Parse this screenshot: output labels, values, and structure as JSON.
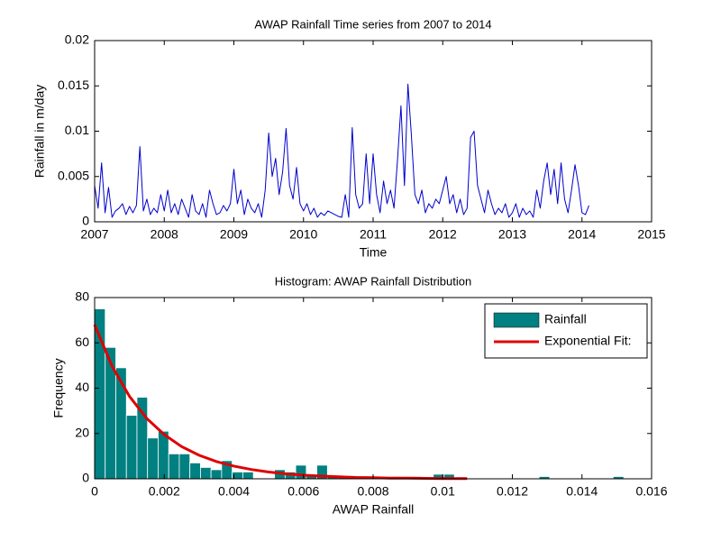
{
  "chart_data": [
    {
      "type": "line",
      "title": "AWAP Rainfall Time series from 2007 to 2014",
      "xlabel": "Time",
      "ylabel": "Rainfall in m/day",
      "x": [
        2007,
        2007.05,
        2007.1,
        2007.15,
        2007.2,
        2007.25,
        2007.3,
        2007.35,
        2007.4,
        2007.45,
        2007.5,
        2007.55,
        2007.6,
        2007.65,
        2007.7,
        2007.75,
        2007.8,
        2007.85,
        2007.9,
        2007.95,
        2008,
        2008.05,
        2008.1,
        2008.15,
        2008.2,
        2008.25,
        2008.3,
        2008.35,
        2008.4,
        2008.45,
        2008.5,
        2008.55,
        2008.6,
        2008.65,
        2008.7,
        2008.75,
        2008.8,
        2008.85,
        2008.9,
        2008.95,
        2009,
        2009.05,
        2009.1,
        2009.15,
        2009.2,
        2009.25,
        2009.3,
        2009.35,
        2009.4,
        2009.45,
        2009.5,
        2009.55,
        2009.6,
        2009.65,
        2009.7,
        2009.75,
        2009.8,
        2009.85,
        2009.9,
        2009.95,
        2010,
        2010.05,
        2010.1,
        2010.15,
        2010.2,
        2010.25,
        2010.3,
        2010.35,
        2010.4,
        2010.45,
        2010.5,
        2010.55,
        2010.6,
        2010.65,
        2010.7,
        2010.75,
        2010.8,
        2010.85,
        2010.9,
        2010.95,
        2011,
        2011.05,
        2011.1,
        2011.15,
        2011.2,
        2011.25,
        2011.3,
        2011.35,
        2011.4,
        2011.45,
        2011.5,
        2011.55,
        2011.6,
        2011.65,
        2011.7,
        2011.75,
        2011.8,
        2011.85,
        2011.9,
        2011.95,
        2012,
        2012.05,
        2012.1,
        2012.15,
        2012.2,
        2012.25,
        2012.3,
        2012.35,
        2012.4,
        2012.45,
        2012.5,
        2012.55,
        2012.6,
        2012.65,
        2012.7,
        2012.75,
        2012.8,
        2012.85,
        2012.9,
        2012.95,
        2013,
        2013.05,
        2013.1,
        2013.15,
        2013.2,
        2013.25,
        2013.3,
        2013.35,
        2013.4,
        2013.45,
        2013.5,
        2013.55,
        2013.6,
        2013.65,
        2013.7,
        2013.75,
        2013.8,
        2013.85,
        2013.9,
        2013.95,
        2014,
        2014.05,
        2014.1
      ],
      "series": [
        {
          "color": "#0000cc",
          "values": [
            0.004,
            0.0015,
            0.0065,
            0.001,
            0.0038,
            0.0005,
            0.0012,
            0.0015,
            0.002,
            0.0008,
            0.0017,
            0.001,
            0.0018,
            0.0083,
            0.0012,
            0.0025,
            0.0008,
            0.0015,
            0.001,
            0.003,
            0.0012,
            0.0035,
            0.001,
            0.002,
            0.0008,
            0.0025,
            0.0015,
            0.0005,
            0.003,
            0.0012,
            0.0008,
            0.002,
            0.0005,
            0.0035,
            0.002,
            0.0008,
            0.001,
            0.0018,
            0.0012,
            0.002,
            0.0058,
            0.002,
            0.0035,
            0.0008,
            0.0025,
            0.0015,
            0.001,
            0.002,
            0.0005,
            0.0035,
            0.0098,
            0.005,
            0.007,
            0.003,
            0.0055,
            0.0103,
            0.004,
            0.0025,
            0.006,
            0.002,
            0.0012,
            0.002,
            0.0008,
            0.0015,
            0.0005,
            0.001,
            0.0007,
            0.0012,
            0.001,
            0.0008,
            0.0006,
            0.0005,
            0.003,
            0.0005,
            0.0104,
            0.003,
            0.0015,
            0.002,
            0.0075,
            0.002,
            0.0075,
            0.003,
            0.001,
            0.0045,
            0.002,
            0.0035,
            0.0015,
            0.0068,
            0.0128,
            0.004,
            0.0152,
            0.0095,
            0.003,
            0.002,
            0.0035,
            0.001,
            0.002,
            0.0015,
            0.0025,
            0.002,
            0.0035,
            0.005,
            0.002,
            0.003,
            0.001,
            0.0025,
            0.0008,
            0.0015,
            0.0093,
            0.01,
            0.004,
            0.0025,
            0.001,
            0.0035,
            0.002,
            0.0008,
            0.0015,
            0.001,
            0.002,
            0.0005,
            0.001,
            0.002,
            0.0005,
            0.0015,
            0.0008,
            0.0012,
            0.0005,
            0.0035,
            0.0015,
            0.0045,
            0.0065,
            0.003,
            0.0058,
            0.002,
            0.0065,
            0.0025,
            0.001,
            0.0035,
            0.0063,
            0.004,
            0.001,
            0.0008,
            0.0018
          ]
        }
      ],
      "xlim": [
        2007,
        2015
      ],
      "xticks": [
        2007,
        2008,
        2009,
        2010,
        2011,
        2012,
        2013,
        2014,
        2015
      ],
      "ylim": [
        0,
        0.02
      ],
      "yticks": [
        0,
        0.005,
        0.01,
        0.015,
        0.02
      ]
    },
    {
      "type": "histogram",
      "title": "Histogram: AWAP Rainfall Distribution",
      "xlabel": "AWAP Rainfall",
      "ylabel": "Frequency",
      "bins": [
        0,
        0.000304,
        0.000608,
        0.000912,
        0.001216,
        0.00152,
        0.001824,
        0.002128,
        0.002432,
        0.002736,
        0.00304,
        0.003344,
        0.003648,
        0.003952,
        0.004256,
        0.00456,
        0.004864,
        0.005168,
        0.005472,
        0.005776,
        0.00608,
        0.006384,
        0.006688,
        0.006992,
        0.007296,
        0.0076,
        0.007904,
        0.008208,
        0.008512,
        0.008816,
        0.00912,
        0.009424,
        0.009728,
        0.010032,
        0.010336,
        0.01064,
        0.010944,
        0.011248,
        0.011552,
        0.011856,
        0.01216,
        0.012464,
        0.012768,
        0.013072,
        0.013376,
        0.01368,
        0.013984,
        0.014288,
        0.014592,
        0.014896,
        0.0152
      ],
      "series": [
        {
          "name": "Rainfall",
          "color": "#008080",
          "values": [
            75,
            58,
            49,
            28,
            36,
            18,
            21,
            11,
            11,
            7,
            5,
            4,
            8,
            3,
            3,
            0,
            0,
            4,
            3,
            6,
            2,
            6,
            1,
            1,
            1,
            0,
            1,
            0,
            1,
            0,
            1,
            0,
            2,
            2,
            0,
            0,
            0,
            0,
            0,
            0,
            0,
            0,
            1,
            0,
            0,
            0,
            0,
            0,
            0,
            1
          ]
        },
        {
          "name": "Exponential Fit:",
          "type": "line",
          "color": "#e00000",
          "x": [
            0,
            0.0005,
            0.001,
            0.0015,
            0.002,
            0.0025,
            0.003,
            0.0035,
            0.004,
            0.0045,
            0.005,
            0.0055,
            0.006,
            0.0065,
            0.007,
            0.0075,
            0.008,
            0.0085,
            0.009,
            0.0095,
            0.01,
            0.0107
          ],
          "values": [
            68,
            49.7,
            36.4,
            26.6,
            19.5,
            14.2,
            10.4,
            7.6,
            5.6,
            4.1,
            3.0,
            2.2,
            1.6,
            1.2,
            0.9,
            0.6,
            0.5,
            0.3,
            0.3,
            0.2,
            0.1,
            0.1
          ]
        }
      ],
      "legend": "upper right",
      "xlim": [
        0,
        0.016
      ],
      "xticks": [
        0,
        0.002,
        0.004,
        0.006,
        0.008,
        0.01,
        0.012,
        0.014,
        0.016
      ],
      "ylim": [
        0,
        80
      ],
      "yticks": [
        0,
        20,
        40,
        60,
        80
      ]
    }
  ]
}
